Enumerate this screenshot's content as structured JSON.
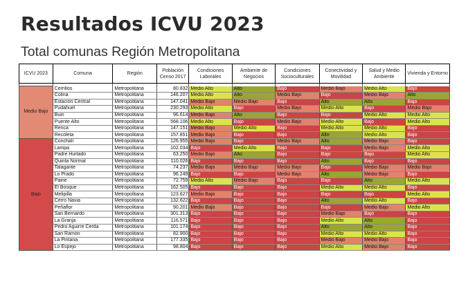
{
  "title": "Resultados ICVU 2023",
  "subtitle": "Total comunas Región Metropolitana",
  "columns": [
    "ICVU 2023",
    "Comuna",
    "Región",
    "Población Censo 2017",
    "Condiciones Laborales",
    "Ambiente de Negocios",
    "Condiciones Socioculturales",
    "Conectividad y Movilidad",
    "Salud y Medio Ambiente",
    "Vivienda y Entorno"
  ],
  "groups": [
    {
      "label": "Medio Bajo",
      "rows": [
        {
          "comuna": "Cerrillos",
          "region": "Metropolitana",
          "poblacion": "80.832",
          "vals": [
            "Medio Alto",
            "Alto",
            "Bajo",
            "Medio Bajo",
            "Medio Alto",
            "Bajo"
          ]
        },
        {
          "comuna": "Colina",
          "region": "Metropolitana",
          "poblacion": "146.207",
          "vals": [
            "Medio Alto",
            "Alto",
            "Medio Bajo",
            "Bajo",
            "Medio Bajo",
            "Alto"
          ]
        },
        {
          "comuna": "Estación Central",
          "region": "Metropolitana",
          "poblacion": "147.041",
          "vals": [
            "Medio Bajo",
            "Medio Bajo",
            "Bajo",
            "Alto",
            "Alto",
            "Bajo"
          ]
        },
        {
          "comuna": "Pudahuel",
          "region": "Metropolitana",
          "poblacion": "230.293",
          "vals": [
            "Medio Alto",
            "Bajo",
            "Medio Bajo",
            "Medio Alto",
            "Bajo",
            "Medio Bajo"
          ]
        },
        {
          "comuna": "Buin",
          "region": "Metropolitana",
          "poblacion": "96.614",
          "vals": [
            "Medio Bajo",
            "Alto",
            "Bajo",
            "Bajo",
            "Medio Alto",
            "Medio Alto"
          ]
        },
        {
          "comuna": "Puente Alto",
          "region": "Metropolitana",
          "poblacion": "568.106",
          "vals": [
            "Medio Alto",
            "Bajo",
            "Medio Bajo",
            "Medio Alto",
            "Bajo",
            "Medio Alto"
          ]
        },
        {
          "comuna": "Renca",
          "region": "Metropolitana",
          "poblacion": "147.151",
          "vals": [
            "Medio Bajo",
            "Medio Alto",
            "Bajo",
            "Medio Alto",
            "Medio Alto",
            "Bajo"
          ]
        },
        {
          "comuna": "Recoleta",
          "region": "Metropolitana",
          "poblacion": "157.851",
          "vals": [
            "Medio Bajo",
            "Bajo",
            "Bajo",
            "Alto",
            "Medio Alto",
            "Bajo"
          ]
        }
      ]
    },
    {
      "label": "Bajo",
      "rows": [
        {
          "comuna": "Conchalí",
          "region": "Metropolitana",
          "poblacion": "126.955",
          "vals": [
            "Medio Bajo",
            "Bajo",
            "Medio Bajo",
            "Alto",
            "Medio Bajo",
            "Bajo"
          ]
        },
        {
          "comuna": "Lampa",
          "region": "Metropolitana",
          "poblacion": "102.034",
          "vals": [
            "Bajo",
            "Medio Alto",
            "Bajo",
            "Bajo",
            "Medio Bajo",
            "Medio Alto"
          ]
        },
        {
          "comuna": "Padre Hurtado",
          "region": "Metropolitana",
          "poblacion": "63.250",
          "vals": [
            "Medio Bajo",
            "Alto",
            "Bajo",
            "Bajo",
            "Bajo",
            "Medio Alto"
          ]
        },
        {
          "comuna": "Quinta Normal",
          "region": "Metropolitana",
          "poblacion": "110.026",
          "vals": [
            "Bajo",
            "Bajo",
            "Bajo",
            "Alto",
            "Bajo",
            "Bajo"
          ]
        },
        {
          "comuna": "Talagante",
          "region": "Metropolitana",
          "poblacion": "74.237",
          "vals": [
            "Medio Bajo",
            "Medio Bajo",
            "Medio Bajo",
            "Bajo",
            "Medio Bajo",
            "Medio Bajo"
          ]
        },
        {
          "comuna": "Lo Prado",
          "region": "Metropolitana",
          "poblacion": "96.249",
          "vals": [
            "Bajo",
            "Bajo",
            "Medio Bajo",
            "Alto",
            "Medio Bajo",
            "Bajo"
          ]
        },
        {
          "comuna": "Paine",
          "region": "Metropolitana",
          "poblacion": "72.759",
          "vals": [
            "Medio Alto",
            "Medio Bajo",
            "Bajo",
            "Bajo",
            "Alto",
            "Medio Alto"
          ]
        },
        {
          "comuna": "El Bosque",
          "region": "Metropolitana",
          "poblacion": "162.505",
          "vals": [
            "Bajo",
            "Bajo",
            "Bajo",
            "Medio Alto",
            "Medio Alto",
            "Bajo"
          ]
        },
        {
          "comuna": "Melipilla",
          "region": "Metropolitana",
          "poblacion": "123.627",
          "vals": [
            "Medio Bajo",
            "Bajo",
            "Bajo",
            "Bajo",
            "Bajo",
            "Medio Alto"
          ]
        },
        {
          "comuna": "Cerro Navia",
          "region": "Metropolitana",
          "poblacion": "132.622",
          "vals": [
            "Bajo",
            "Bajo",
            "Bajo",
            "Alto",
            "Medio Alto",
            "Bajo"
          ]
        },
        {
          "comuna": "Peñaflor",
          "region": "Metropolitana",
          "poblacion": "90.201",
          "vals": [
            "Medio Bajo",
            "Bajo",
            "Bajo",
            "Bajo",
            "Medio Bajo",
            "Medio Alto"
          ]
        },
        {
          "comuna": "San Bernardo",
          "region": "Metropolitana",
          "poblacion": "301.313",
          "vals": [
            "Bajo",
            "Bajo",
            "Bajo",
            "Medio Bajo",
            "Bajo",
            "Bajo"
          ]
        },
        {
          "comuna": "La Granja",
          "region": "Metropolitana",
          "poblacion": "116.571",
          "vals": [
            "Bajo",
            "Bajo",
            "Bajo",
            "Medio Alto",
            "Alto",
            "Bajo"
          ]
        },
        {
          "comuna": "Pedro Aguirre Cerda",
          "region": "Metropolitana",
          "poblacion": "101.174",
          "vals": [
            "Bajo",
            "Bajo",
            "Bajo",
            "Alto",
            "Alto",
            "Bajo"
          ]
        },
        {
          "comuna": "San Ramón",
          "region": "Metropolitana",
          "poblacion": "82.900",
          "vals": [
            "Bajo",
            "Bajo",
            "Bajo",
            "Medio Alto",
            "Medio Alto",
            "Bajo"
          ]
        },
        {
          "comuna": "La Pintana",
          "region": "Metropolitana",
          "poblacion": "177.335",
          "vals": [
            "Bajo",
            "Bajo",
            "Bajo",
            "Medio Bajo",
            "Medio Bajo",
            "Bajo"
          ]
        },
        {
          "comuna": "Lo Espejo",
          "region": "Metropolitana",
          "poblacion": "98.804",
          "vals": [
            "Bajo",
            "Bajo",
            "Bajo",
            "Medio Alto",
            "Medio Bajo",
            "Bajo"
          ]
        }
      ]
    }
  ],
  "colors": {
    "Alto": "#9aa630",
    "Medio Alto": "#dbe34a",
    "Medio Bajo": "#e3826c",
    "Bajo": "#cc4444",
    "group_medio_bajo": "#e28a74",
    "group_bajo": "#d44a4a"
  }
}
